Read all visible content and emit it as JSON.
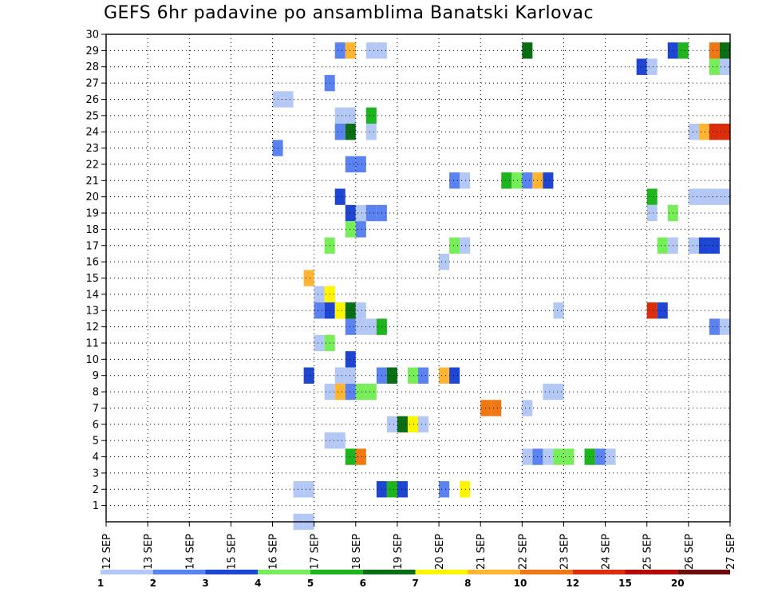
{
  "chart_data": {
    "type": "heatmap",
    "title": "GEFS 6hr padavine po ansamblima Banatski Karlovac",
    "x_tick_labels": [
      "12 SEP",
      "13 SEP",
      "14 SEP",
      "15 SEP",
      "16 SEP",
      "17 SEP",
      "18 SEP",
      "19 SEP",
      "20 SEP",
      "21 SEP",
      "22 SEP",
      "23 SEP",
      "24 SEP",
      "25 SEP",
      "26 SEP",
      "27 SEP"
    ],
    "y_tick_labels": [
      "1",
      "2",
      "3",
      "4",
      "5",
      "6",
      "7",
      "8",
      "9",
      "10",
      "11",
      "12",
      "13",
      "14",
      "15",
      "16",
      "17",
      "18",
      "19",
      "20",
      "21",
      "22",
      "23",
      "24",
      "25",
      "26",
      "27",
      "28",
      "29",
      "30"
    ],
    "x_range_days": [
      12,
      27
    ],
    "y_range": [
      0,
      30
    ],
    "grid": true,
    "colorbar": {
      "levels": [
        "1",
        "2",
        "3",
        "4",
        "5",
        "6",
        "7",
        "8",
        "10",
        "12",
        "15",
        "20"
      ],
      "colors": [
        "#b4c8f5",
        "#5a82f0",
        "#1e46d2",
        "#78ed5a",
        "#1eb41e",
        "#0a6e14",
        "#fff500",
        "#ffb432",
        "#f07814",
        "#dc2d0a",
        "#b40a0a",
        "#6e0a0a"
      ]
    },
    "cells_note": "each cell = [member, start_day(day of SEP, 0.25 = 6h), class index 0-11 matching colorbar]",
    "cells": [
      [
        29,
        17.5,
        1
      ],
      [
        29,
        17.75,
        7
      ],
      [
        29,
        18.25,
        0
      ],
      [
        29,
        18.5,
        0
      ],
      [
        29,
        22.0,
        5
      ],
      [
        29,
        25.5,
        2
      ],
      [
        29,
        25.75,
        4
      ],
      [
        29,
        26.5,
        8
      ],
      [
        29,
        26.75,
        5
      ],
      [
        28,
        24.75,
        2
      ],
      [
        28,
        25.0,
        0
      ],
      [
        28,
        26.5,
        3
      ],
      [
        28,
        26.75,
        0
      ],
      [
        27,
        17.25,
        1
      ],
      [
        26,
        16.0,
        0
      ],
      [
        26,
        16.25,
        0
      ],
      [
        25,
        17.5,
        0
      ],
      [
        25,
        17.75,
        0
      ],
      [
        25,
        18.25,
        4
      ],
      [
        24,
        17.5,
        1
      ],
      [
        24,
        17.75,
        5
      ],
      [
        24,
        18.25,
        0
      ],
      [
        24,
        26.0,
        0
      ],
      [
        24,
        26.25,
        7
      ],
      [
        24,
        26.5,
        9
      ],
      [
        24,
        26.75,
        9
      ],
      [
        23,
        16.0,
        1
      ],
      [
        22,
        17.75,
        1
      ],
      [
        22,
        18.0,
        1
      ],
      [
        21,
        20.25,
        1
      ],
      [
        21,
        20.5,
        0
      ],
      [
        21,
        21.5,
        4
      ],
      [
        21,
        21.75,
        3
      ],
      [
        21,
        22.0,
        1
      ],
      [
        21,
        22.25,
        7
      ],
      [
        21,
        22.5,
        2
      ],
      [
        20,
        17.5,
        2
      ],
      [
        20,
        25.0,
        4
      ],
      [
        20,
        26.0,
        0
      ],
      [
        20,
        26.25,
        0
      ],
      [
        20,
        26.5,
        0
      ],
      [
        20,
        26.75,
        0
      ],
      [
        19,
        17.75,
        2
      ],
      [
        19,
        18.0,
        0
      ],
      [
        19,
        18.25,
        1
      ],
      [
        19,
        18.5,
        1
      ],
      [
        19,
        25.0,
        0
      ],
      [
        19,
        25.5,
        3
      ],
      [
        18,
        17.75,
        3
      ],
      [
        18,
        18.0,
        1
      ],
      [
        17,
        17.25,
        3
      ],
      [
        17,
        20.25,
        3
      ],
      [
        17,
        20.5,
        0
      ],
      [
        17,
        25.25,
        3
      ],
      [
        17,
        25.5,
        0
      ],
      [
        17,
        26.0,
        0
      ],
      [
        17,
        26.25,
        2
      ],
      [
        17,
        26.5,
        2
      ],
      [
        16,
        20.0,
        0
      ],
      [
        15,
        16.75,
        7
      ],
      [
        14,
        17.0,
        0
      ],
      [
        14,
        17.25,
        6
      ],
      [
        13,
        17.0,
        1
      ],
      [
        13,
        17.25,
        2
      ],
      [
        13,
        17.5,
        6
      ],
      [
        13,
        17.75,
        5
      ],
      [
        13,
        18.0,
        0
      ],
      [
        13,
        22.75,
        0
      ],
      [
        13,
        25.0,
        9
      ],
      [
        13,
        25.25,
        2
      ],
      [
        12,
        17.75,
        1
      ],
      [
        12,
        18.0,
        0
      ],
      [
        12,
        18.25,
        0
      ],
      [
        12,
        18.5,
        4
      ],
      [
        12,
        26.5,
        1
      ],
      [
        12,
        26.75,
        0
      ],
      [
        11,
        17.0,
        0
      ],
      [
        11,
        17.25,
        3
      ],
      [
        10,
        17.75,
        2
      ],
      [
        9,
        16.75,
        2
      ],
      [
        9,
        17.5,
        0
      ],
      [
        9,
        17.75,
        0
      ],
      [
        9,
        18.5,
        1
      ],
      [
        9,
        18.75,
        5
      ],
      [
        9,
        19.25,
        3
      ],
      [
        9,
        19.5,
        1
      ],
      [
        9,
        20.0,
        7
      ],
      [
        9,
        20.25,
        2
      ],
      [
        8,
        17.25,
        0
      ],
      [
        8,
        17.5,
        7
      ],
      [
        8,
        17.75,
        1
      ],
      [
        8,
        18.0,
        3
      ],
      [
        8,
        18.25,
        3
      ],
      [
        8,
        22.5,
        0
      ],
      [
        8,
        22.75,
        0
      ],
      [
        7,
        21.0,
        8
      ],
      [
        7,
        21.25,
        8
      ],
      [
        7,
        22.0,
        0
      ],
      [
        6,
        18.75,
        0
      ],
      [
        6,
        19.0,
        5
      ],
      [
        6,
        19.25,
        6
      ],
      [
        6,
        19.5,
        0
      ],
      [
        5,
        17.25,
        0
      ],
      [
        5,
        17.5,
        0
      ],
      [
        4,
        17.75,
        4
      ],
      [
        4,
        18.0,
        8
      ],
      [
        4,
        22.0,
        0
      ],
      [
        4,
        22.25,
        1
      ],
      [
        4,
        22.5,
        0
      ],
      [
        4,
        22.75,
        3
      ],
      [
        4,
        23.0,
        3
      ],
      [
        4,
        23.5,
        4
      ],
      [
        4,
        23.75,
        1
      ],
      [
        4,
        24.0,
        0
      ],
      [
        2,
        16.5,
        0
      ],
      [
        2,
        16.75,
        0
      ],
      [
        2,
        18.5,
        2
      ],
      [
        2,
        18.75,
        4
      ],
      [
        2,
        19.0,
        2
      ],
      [
        2,
        20.0,
        1
      ],
      [
        2,
        20.5,
        6
      ],
      [
        0,
        16.5,
        0
      ],
      [
        0,
        16.75,
        0
      ]
    ]
  }
}
